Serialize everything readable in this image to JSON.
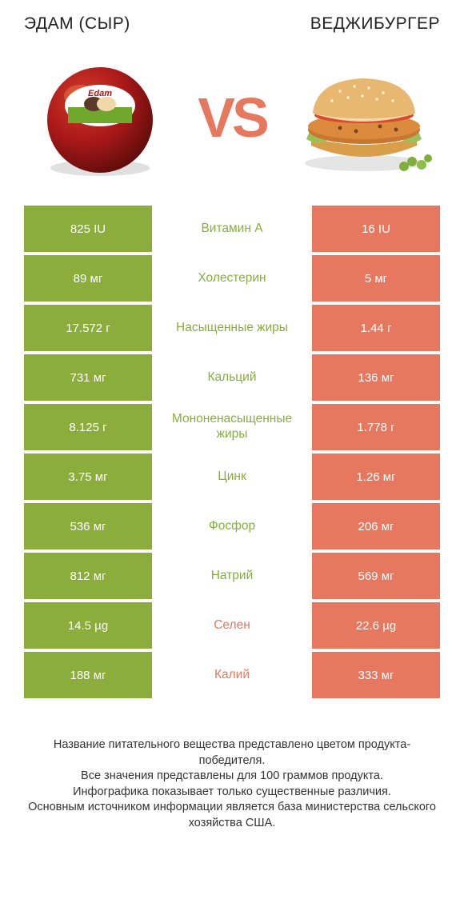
{
  "colors": {
    "green": "#8aad3c",
    "orange": "#e77860",
    "cheese_red": "#a81818",
    "cheese_dark": "#5e0c0c",
    "cheese_label_green": "#6fa82d",
    "bun_top": "#e8b870",
    "bun_bottom": "#d89e4a",
    "patty": "#c9762f",
    "tomato": "#d94a2e",
    "lettuce": "#9ac05a",
    "pea": "#7fae3d"
  },
  "header": {
    "left": "ЭДАМ (СЫР)",
    "right": "ВЕДЖИБУРГЕР"
  },
  "vs": "VS",
  "rows": [
    {
      "left": "825 IU",
      "mid": "Витамин A",
      "right": "16 IU",
      "winner": "left"
    },
    {
      "left": "89 мг",
      "mid": "Холестерин",
      "right": "5 мг",
      "winner": "left"
    },
    {
      "left": "17.572 г",
      "mid": "Насыщенные жиры",
      "right": "1.44 г",
      "winner": "left"
    },
    {
      "left": "731 мг",
      "mid": "Кальций",
      "right": "136 мг",
      "winner": "left"
    },
    {
      "left": "8.125 г",
      "mid": "Мононенасыщенные жиры",
      "right": "1.778 г",
      "winner": "left"
    },
    {
      "left": "3.75 мг",
      "mid": "Цинк",
      "right": "1.26 мг",
      "winner": "left"
    },
    {
      "left": "536 мг",
      "mid": "Фосфор",
      "right": "206 мг",
      "winner": "left"
    },
    {
      "left": "812 мг",
      "mid": "Натрий",
      "right": "569 мг",
      "winner": "left"
    },
    {
      "left": "14.5 µg",
      "mid": "Селен",
      "right": "22.6 µg",
      "winner": "right"
    },
    {
      "left": "188 мг",
      "mid": "Калий",
      "right": "333 мг",
      "winner": "right"
    }
  ],
  "footer": {
    "line1": "Название питательного вещества представлено цветом продукта-победителя.",
    "line2": "Все значения представлены для 100 граммов продукта.",
    "line3": "Инфографика показывает только существенные различия.",
    "line4": "Основным источником информации является база министерства сельского хозяйства США."
  }
}
